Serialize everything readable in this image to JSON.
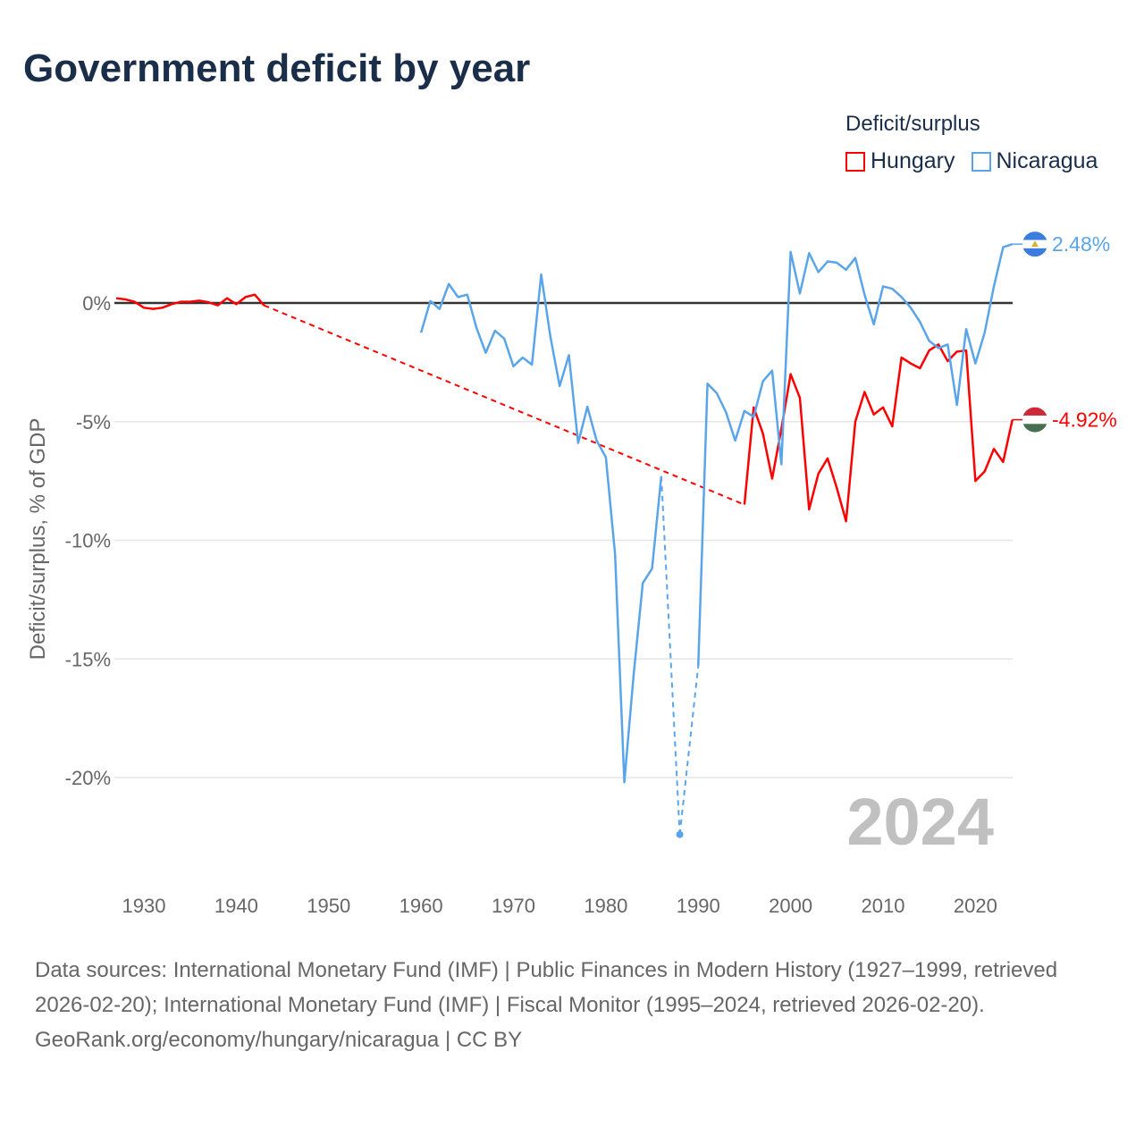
{
  "title": "Government deficit by year",
  "legend": {
    "title": "Deficit/surplus",
    "items": [
      {
        "name": "Hungary",
        "color": "#ff0000"
      },
      {
        "name": "Nicaragua",
        "color": "#5aa5ea"
      }
    ]
  },
  "year_watermark": "2024",
  "footer": {
    "sources": "Data sources: International Monetary Fund (IMF) | Public Finances in Modern History (1927–1999, retrieved 2026-02-20); International Monetary Fund (IMF) | Fiscal Monitor (1995–2024, retrieved 2026-02-20).",
    "credit": "GeoRank.org/economy/hungary/nicaragua | CC BY"
  },
  "chart_data": {
    "type": "line",
    "title": "Government deficit by year",
    "xlabel": "",
    "ylabel": "Deficit/surplus, % of GDP",
    "xlim": [
      1927,
      2024
    ],
    "ylim": [
      -23.5,
      3.5
    ],
    "x_ticks": [
      1930,
      1940,
      1950,
      1960,
      1970,
      1980,
      1990,
      2000,
      2010,
      2020
    ],
    "x_tick_labels": [
      "1930",
      "1940",
      "1950",
      "1960",
      "1970",
      "1980",
      "1990",
      "2000",
      "2010",
      "2020"
    ],
    "y_ticks": [
      0,
      -5,
      -10,
      -15,
      -20
    ],
    "y_tick_labels": [
      "0%",
      "-5%",
      "-10%",
      "-15%",
      "-20%"
    ],
    "grid": true,
    "legend_position": "top-right",
    "series": [
      {
        "name": "Hungary",
        "color": "#ff0000",
        "end_label": "-4.92%",
        "points": [
          [
            1927,
            0.2
          ],
          [
            1928,
            0.15
          ],
          [
            1929,
            0.05
          ],
          [
            1930,
            -0.2
          ],
          [
            1931,
            -0.25
          ],
          [
            1932,
            -0.2
          ],
          [
            1933,
            -0.05
          ],
          [
            1934,
            0.05
          ],
          [
            1935,
            0.05
          ],
          [
            1936,
            0.1
          ],
          [
            1937,
            0.03
          ],
          [
            1938,
            -0.1
          ],
          [
            1939,
            0.2
          ],
          [
            1940,
            -0.05
          ],
          [
            1941,
            0.25
          ],
          [
            1942,
            0.35
          ],
          [
            1943,
            -0.1
          ],
          [
            1995,
            -8.5
          ],
          [
            1996,
            -4.4
          ],
          [
            1997,
            -5.5
          ],
          [
            1998,
            -7.4
          ],
          [
            1999,
            -5.3
          ],
          [
            2000,
            -3.0
          ],
          [
            2001,
            -4.0
          ],
          [
            2002,
            -8.7
          ],
          [
            2003,
            -7.2
          ],
          [
            2004,
            -6.55
          ],
          [
            2005,
            -7.8
          ],
          [
            2006,
            -9.2
          ],
          [
            2007,
            -5.0
          ],
          [
            2008,
            -3.75
          ],
          [
            2009,
            -4.7
          ],
          [
            2010,
            -4.4
          ],
          [
            2011,
            -5.2
          ],
          [
            2012,
            -2.3
          ],
          [
            2013,
            -2.55
          ],
          [
            2014,
            -2.75
          ],
          [
            2015,
            -2.0
          ],
          [
            2016,
            -1.75
          ],
          [
            2017,
            -2.45
          ],
          [
            2018,
            -2.05
          ],
          [
            2019,
            -2.0
          ],
          [
            2020,
            -7.5
          ],
          [
            2021,
            -7.1
          ],
          [
            2022,
            -6.15
          ],
          [
            2023,
            -6.7
          ],
          [
            2024,
            -4.92
          ]
        ]
      },
      {
        "name": "Nicaragua",
        "color": "#5aa5ea",
        "end_label": "2.48%",
        "points": [
          [
            1960,
            -1.25
          ],
          [
            1961,
            0.08
          ],
          [
            1962,
            -0.25
          ],
          [
            1963,
            0.8
          ],
          [
            1964,
            0.25
          ],
          [
            1965,
            0.35
          ],
          [
            1966,
            -1.05
          ],
          [
            1967,
            -2.1
          ],
          [
            1968,
            -1.17
          ],
          [
            1969,
            -1.5
          ],
          [
            1970,
            -2.67
          ],
          [
            1971,
            -2.3
          ],
          [
            1972,
            -2.6
          ],
          [
            1973,
            1.2
          ],
          [
            1974,
            -1.43
          ],
          [
            1975,
            -3.5
          ],
          [
            1976,
            -2.2
          ],
          [
            1977,
            -5.9
          ],
          [
            1978,
            -4.37
          ],
          [
            1979,
            -5.8
          ],
          [
            1980,
            -6.5
          ],
          [
            1981,
            -10.6
          ],
          [
            1982,
            -20.2
          ],
          [
            1983,
            -15.7
          ],
          [
            1984,
            -11.8
          ],
          [
            1985,
            -11.2
          ],
          [
            1986,
            -7.3
          ],
          [
            1988,
            -22.4
          ],
          [
            1990,
            -15.3
          ],
          [
            1991,
            -3.4
          ],
          [
            1992,
            -3.8
          ],
          [
            1993,
            -4.6
          ],
          [
            1994,
            -5.8
          ],
          [
            1995,
            -4.55
          ],
          [
            1996,
            -4.8
          ],
          [
            1997,
            -3.3
          ],
          [
            1998,
            -2.85
          ],
          [
            1999,
            -6.8
          ],
          [
            2000,
            2.15
          ],
          [
            2001,
            0.4
          ],
          [
            2002,
            2.1
          ],
          [
            2003,
            1.3
          ],
          [
            2004,
            1.75
          ],
          [
            2005,
            1.7
          ],
          [
            2006,
            1.4
          ],
          [
            2007,
            1.9
          ],
          [
            2008,
            0.35
          ],
          [
            2009,
            -0.9
          ],
          [
            2010,
            0.7
          ],
          [
            2011,
            0.6
          ],
          [
            2012,
            0.25
          ],
          [
            2013,
            -0.2
          ],
          [
            2014,
            -0.8
          ],
          [
            2015,
            -1.6
          ],
          [
            2016,
            -1.9
          ],
          [
            2017,
            -1.75
          ],
          [
            2018,
            -4.3
          ],
          [
            2019,
            -1.1
          ],
          [
            2020,
            -2.55
          ],
          [
            2021,
            -1.25
          ],
          [
            2022,
            0.7
          ],
          [
            2023,
            2.35
          ],
          [
            2024,
            2.48
          ]
        ]
      }
    ]
  }
}
